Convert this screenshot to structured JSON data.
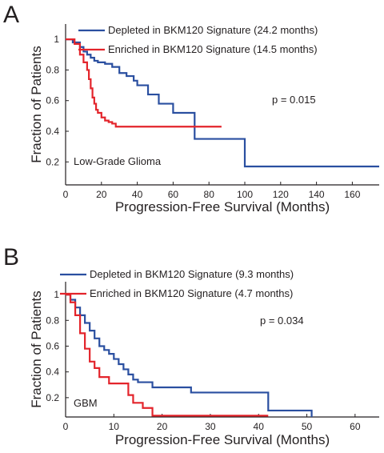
{
  "colors": {
    "depleted": "#2a4fa0",
    "enriched": "#e3242b",
    "axis": "#231f20"
  },
  "chart_data": [
    {
      "type": "line",
      "panel_label": "A",
      "title": "",
      "xlabel": "Progression-Free Survival (Months)",
      "ylabel": "Fraction of Patients",
      "xlim": [
        0,
        175
      ],
      "ylim": [
        0.05,
        1.1
      ],
      "xticks": [
        "0",
        "20",
        "40",
        "60",
        "80",
        "100",
        "120",
        "140",
        "160"
      ],
      "xtick_values": [
        0,
        20,
        40,
        60,
        80,
        100,
        120,
        140,
        160
      ],
      "yticks": [
        "0.2",
        "0.4",
        "0.6",
        "0.8",
        "1"
      ],
      "ytick_values": [
        0.2,
        0.4,
        0.6,
        0.8,
        1.0
      ],
      "grid": false,
      "legend_position": "top-right",
      "annotations": [
        "p = 0.015",
        "Low-Grade Glioma"
      ],
      "series": [
        {
          "name": "Depleted in BKM120 Signature (24.2 months)",
          "color": "#2a4fa0",
          "x": [
            0,
            4,
            8,
            10,
            12,
            14,
            16,
            18,
            22,
            26,
            30,
            34,
            38,
            40,
            46,
            52,
            60,
            72,
            100,
            175
          ],
          "y": [
            1.0,
            0.98,
            0.95,
            0.92,
            0.9,
            0.88,
            0.86,
            0.85,
            0.84,
            0.82,
            0.78,
            0.76,
            0.73,
            0.7,
            0.64,
            0.58,
            0.52,
            0.35,
            0.17,
            0.17
          ]
        },
        {
          "name": "Enriched in BKM120 Signature (14.5 months)",
          "color": "#e3242b",
          "x": [
            0,
            5,
            8,
            10,
            12,
            13,
            14,
            15,
            16,
            17,
            18,
            20,
            22,
            24,
            26,
            28,
            87
          ],
          "y": [
            1.0,
            0.97,
            0.9,
            0.85,
            0.8,
            0.74,
            0.68,
            0.62,
            0.58,
            0.54,
            0.52,
            0.49,
            0.47,
            0.46,
            0.45,
            0.43,
            0.43
          ]
        }
      ]
    },
    {
      "type": "line",
      "panel_label": "B",
      "title": "",
      "xlabel": "Progression-Free Survival (Months)",
      "ylabel": "Fraction of Patients",
      "xlim": [
        0,
        65
      ],
      "ylim": [
        0.05,
        1.1
      ],
      "xticks": [
        "0",
        "10",
        "20",
        "30",
        "40",
        "50",
        "60"
      ],
      "xtick_values": [
        0,
        10,
        20,
        30,
        40,
        50,
        60
      ],
      "yticks": [
        "0.2",
        "0.4",
        "0.6",
        "0.8",
        "1"
      ],
      "ytick_values": [
        0.2,
        0.4,
        0.6,
        0.8,
        1.0
      ],
      "grid": false,
      "legend_position": "top-right",
      "annotations": [
        "p = 0.034",
        "GBM"
      ],
      "series": [
        {
          "name": "Depleted in BKM120 Signature (9.3 months)",
          "color": "#2a4fa0",
          "x": [
            0,
            1,
            2,
            3,
            4,
            5,
            6,
            7,
            8,
            9,
            10,
            11,
            12,
            13,
            14,
            15,
            18,
            26,
            42,
            51
          ],
          "y": [
            1.0,
            0.96,
            0.9,
            0.84,
            0.78,
            0.72,
            0.66,
            0.6,
            0.57,
            0.54,
            0.5,
            0.46,
            0.42,
            0.38,
            0.34,
            0.32,
            0.28,
            0.24,
            0.1,
            0.05
          ]
        },
        {
          "name": "Enriched in BKM120 Signature (4.7 months)",
          "color": "#e3242b",
          "x": [
            0,
            1,
            2,
            3,
            4,
            5,
            6,
            7,
            9,
            13,
            14,
            16,
            18,
            42
          ],
          "y": [
            1.0,
            0.94,
            0.84,
            0.7,
            0.58,
            0.48,
            0.43,
            0.36,
            0.31,
            0.22,
            0.16,
            0.12,
            0.06,
            0.06
          ]
        }
      ]
    }
  ]
}
